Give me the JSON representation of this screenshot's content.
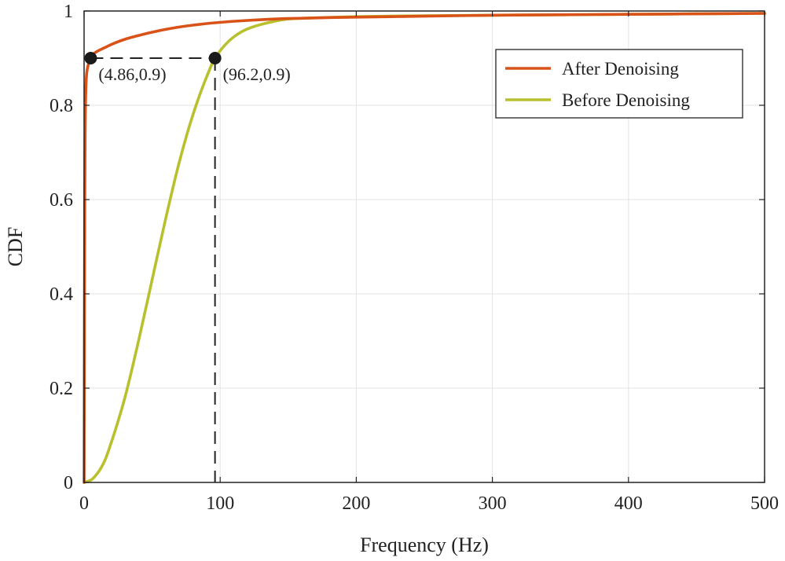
{
  "chart_data": {
    "type": "line",
    "title": "",
    "xlabel": "Frequency (Hz)",
    "ylabel": "CDF",
    "xlim": [
      0,
      500
    ],
    "ylim": [
      0,
      1
    ],
    "xticks": [
      0,
      100,
      200,
      300,
      400,
      500
    ],
    "xtick_labels": [
      "0",
      "100",
      "200",
      "300",
      "400",
      "500"
    ],
    "yticks": [
      0,
      0.2,
      0.4,
      0.6,
      0.8,
      1
    ],
    "ytick_labels": [
      "0",
      "0.2",
      "0.4",
      "0.6",
      "0.8",
      "1"
    ],
    "grid": true,
    "legend_position": "top-right",
    "series": [
      {
        "name": "After Denoising",
        "color": "#D95319",
        "x": [
          0,
          0.25,
          0.5,
          0.75,
          1,
          1.5,
          2,
          3,
          4.86,
          7,
          10,
          15,
          20,
          30,
          40,
          50,
          60,
          70,
          80,
          96.2,
          120,
          150,
          200,
          250,
          300,
          350,
          400,
          450,
          500
        ],
        "y": [
          0,
          0.35,
          0.6,
          0.74,
          0.8,
          0.85,
          0.87,
          0.885,
          0.9,
          0.909,
          0.915,
          0.922,
          0.929,
          0.94,
          0.948,
          0.955,
          0.961,
          0.966,
          0.97,
          0.975,
          0.98,
          0.984,
          0.987,
          0.989,
          0.991,
          0.992,
          0.993,
          0.994,
          0.995
        ]
      },
      {
        "name": "Before Denoising",
        "color": "#B9C02E",
        "x": [
          0,
          5,
          10,
          15,
          20,
          25,
          30,
          40,
          50,
          60,
          70,
          80,
          90,
          96.2,
          110,
          120,
          135,
          150,
          175,
          200,
          250,
          300,
          350,
          400,
          450,
          500
        ],
        "y": [
          0,
          0.005,
          0.02,
          0.045,
          0.085,
          0.13,
          0.18,
          0.3,
          0.43,
          0.56,
          0.68,
          0.78,
          0.86,
          0.9,
          0.945,
          0.962,
          0.975,
          0.983,
          0.986,
          0.988,
          0.99,
          0.991,
          0.992,
          0.993,
          0.994,
          0.995
        ]
      }
    ],
    "annotations": [
      {
        "label": "(4.86,0.9)",
        "x": 4.86,
        "y": 0.9
      },
      {
        "label": "(96.2,0.9)",
        "x": 96.2,
        "y": 0.9
      }
    ]
  }
}
